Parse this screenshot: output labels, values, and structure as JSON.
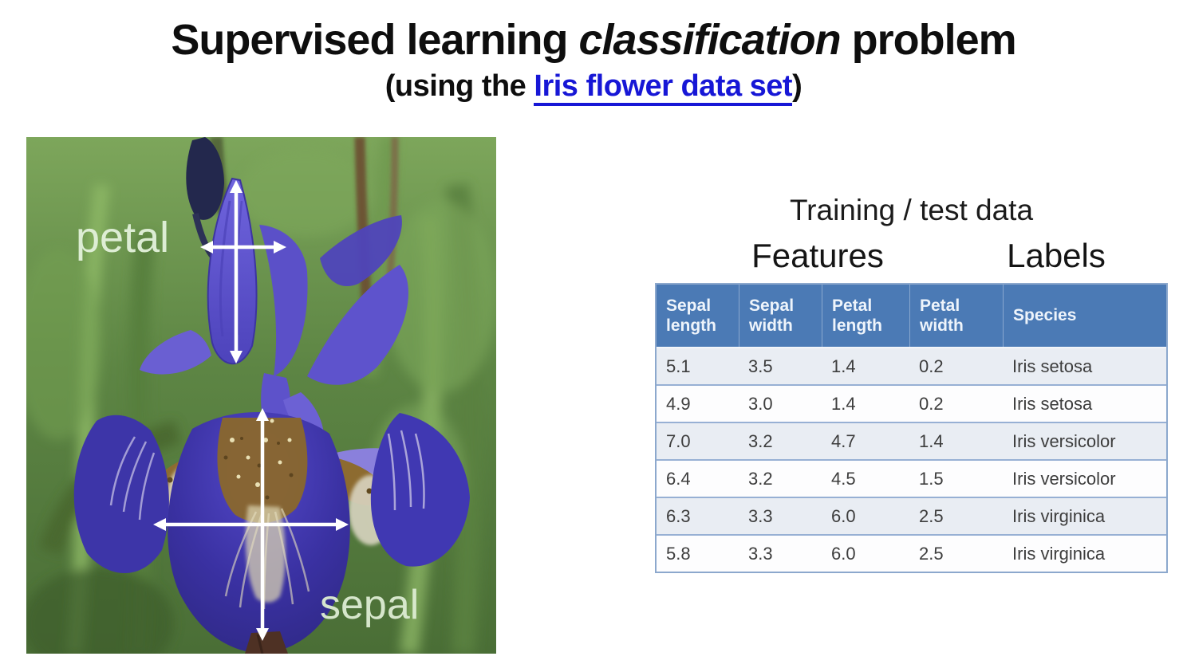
{
  "slide": {
    "title": {
      "prefix": "Supervised learning ",
      "emphasis": "classification",
      "suffix": " problem"
    },
    "subtitle": {
      "prefix": "(using the ",
      "link": "Iris flower data set",
      "suffix": ")"
    }
  },
  "figure": {
    "petal_label": "petal",
    "sepal_label": "sepal"
  },
  "data_panel": {
    "caption": "Training / test data",
    "feature_group_label": "Features",
    "label_group_label": "Labels",
    "table": {
      "headers": [
        "Sepal length",
        "Sepal width",
        "Petal length",
        "Petal width",
        "Species"
      ],
      "rows": [
        [
          "5.1",
          "3.5",
          "1.4",
          "0.2",
          "Iris setosa"
        ],
        [
          "4.9",
          "3.0",
          "1.4",
          "0.2",
          "Iris setosa"
        ],
        [
          "7.0",
          "3.2",
          "4.7",
          "1.4",
          "Iris versicolor"
        ],
        [
          "6.4",
          "3.2",
          "4.5",
          "1.5",
          "Iris versicolor"
        ],
        [
          "6.3",
          "3.3",
          "6.0",
          "2.5",
          "Iris virginica"
        ],
        [
          "5.8",
          "3.3",
          "6.0",
          "2.5",
          "Iris virginica"
        ]
      ]
    }
  },
  "colors": {
    "link-blue": "#1717d6",
    "table-header-bg": "#4b7ab5",
    "table-row-alt": "#e9edf3",
    "table-border": "#8ca8cd",
    "table-row-divider": "#97b0d4",
    "title-color": "#0e0e0e",
    "cell-text": "#3d3d3d",
    "annotation-text": "#e2f1da"
  }
}
